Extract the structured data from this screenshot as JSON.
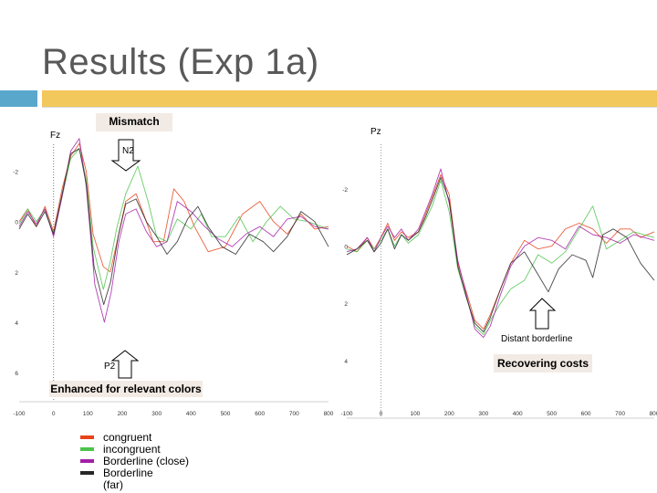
{
  "slide": {
    "title": "Results (Exp 1a)"
  },
  "annotations": {
    "mismatch": "Mismatch",
    "n2": "N2",
    "p2": "P2",
    "enhanced": "Enhanced for relevant colors",
    "distant": "Distant borderline",
    "recovering": "Recovering costs"
  },
  "legend": [
    {
      "label": "congruent",
      "color": "#e8431b"
    },
    {
      "label": "incongruent",
      "color": "#4cc44c"
    },
    {
      "label": "Borderline (close)",
      "color": "#a41ea8"
    },
    {
      "label": "Borderline",
      "color": "#262626"
    },
    {
      "label": "(far)",
      "color": ""
    }
  ],
  "chart_data": [
    {
      "type": "line",
      "panel_label": "Fz",
      "x_ticks": [
        -100,
        0,
        100,
        200,
        300,
        400,
        500,
        600,
        700,
        800
      ],
      "y_ticks": [
        -2,
        0,
        2,
        4,
        6
      ],
      "xlim": [
        -100,
        800
      ],
      "ylim": [
        -3,
        6.8
      ],
      "y_inverted": true,
      "series": [
        {
          "color": "#e8431b",
          "points": [
            [
              -100,
              0
            ],
            [
              -75,
              -0.5
            ],
            [
              -50,
              0.2
            ],
            [
              -25,
              -0.6
            ],
            [
              0,
              0.4
            ],
            [
              25,
              -1.3
            ],
            [
              50,
              -2.6
            ],
            [
              75,
              -3.1
            ],
            [
              95,
              -2
            ],
            [
              115,
              0.5
            ],
            [
              145,
              1.8
            ],
            [
              165,
              2
            ],
            [
              185,
              0.8
            ],
            [
              210,
              -0.8
            ],
            [
              240,
              -1.1
            ],
            [
              270,
              0
            ],
            [
              290,
              0.8
            ],
            [
              320,
              0.8
            ],
            [
              350,
              -1.3
            ],
            [
              380,
              -0.8
            ],
            [
              410,
              0.2
            ],
            [
              450,
              1.2
            ],
            [
              500,
              1
            ],
            [
              550,
              -0.3
            ],
            [
              600,
              -0.8
            ],
            [
              640,
              0
            ],
            [
              680,
              0.5
            ],
            [
              720,
              -0.3
            ],
            [
              760,
              0.3
            ],
            [
              800,
              0.2
            ]
          ]
        },
        {
          "color": "#4cc44c",
          "points": [
            [
              -100,
              0.1
            ],
            [
              -75,
              -0.5
            ],
            [
              -50,
              0
            ],
            [
              -25,
              -0.5
            ],
            [
              0,
              0.5
            ],
            [
              25,
              -1
            ],
            [
              50,
              -2.5
            ],
            [
              75,
              -2.9
            ],
            [
              95,
              -1.7
            ],
            [
              115,
              1
            ],
            [
              145,
              2.7
            ],
            [
              165,
              1.6
            ],
            [
              185,
              0.2
            ],
            [
              210,
              -1.1
            ],
            [
              245,
              -2.2
            ],
            [
              275,
              -0.8
            ],
            [
              300,
              0.6
            ],
            [
              330,
              0.8
            ],
            [
              360,
              -0.1
            ],
            [
              400,
              0.3
            ],
            [
              430,
              -0.3
            ],
            [
              460,
              0.6
            ],
            [
              500,
              0.6
            ],
            [
              540,
              -0.2
            ],
            [
              580,
              0.8
            ],
            [
              620,
              0
            ],
            [
              660,
              -0.6
            ],
            [
              700,
              -0.1
            ],
            [
              740,
              0
            ],
            [
              800,
              0.3
            ]
          ]
        },
        {
          "color": "#a41ea8",
          "points": [
            [
              -100,
              0.2
            ],
            [
              -75,
              -0.4
            ],
            [
              -50,
              0.1
            ],
            [
              -25,
              -0.5
            ],
            [
              0,
              0.6
            ],
            [
              25,
              -1
            ],
            [
              50,
              -2.8
            ],
            [
              75,
              -3.3
            ],
            [
              95,
              -1.4
            ],
            [
              120,
              2.5
            ],
            [
              148,
              4
            ],
            [
              168,
              2.8
            ],
            [
              190,
              0.8
            ],
            [
              210,
              -0.3
            ],
            [
              240,
              -0.5
            ],
            [
              270,
              0.4
            ],
            [
              300,
              1
            ],
            [
              330,
              0.8
            ],
            [
              360,
              -0.8
            ],
            [
              400,
              -0.4
            ],
            [
              440,
              0.2
            ],
            [
              480,
              0.7
            ],
            [
              520,
              1
            ],
            [
              560,
              0.5
            ],
            [
              600,
              0.2
            ],
            [
              640,
              0.6
            ],
            [
              680,
              -0.1
            ],
            [
              720,
              -0.2
            ],
            [
              760,
              0.2
            ],
            [
              800,
              0.3
            ]
          ]
        },
        {
          "color": "#262626",
          "points": [
            [
              -100,
              0.3
            ],
            [
              -75,
              -0.3
            ],
            [
              -50,
              0.2
            ],
            [
              -25,
              -0.4
            ],
            [
              0,
              0.5
            ],
            [
              25,
              -1.1
            ],
            [
              50,
              -2.7
            ],
            [
              75,
              -2.9
            ],
            [
              95,
              -1.5
            ],
            [
              118,
              1.8
            ],
            [
              146,
              3.3
            ],
            [
              166,
              2.4
            ],
            [
              188,
              0.6
            ],
            [
              210,
              -0.7
            ],
            [
              240,
              -0.9
            ],
            [
              270,
              0
            ],
            [
              300,
              0.6
            ],
            [
              330,
              1.3
            ],
            [
              360,
              0.8
            ],
            [
              390,
              -0.1
            ],
            [
              420,
              -0.6
            ],
            [
              450,
              0.2
            ],
            [
              490,
              1
            ],
            [
              530,
              1.3
            ],
            [
              570,
              0.5
            ],
            [
              610,
              0.8
            ],
            [
              640,
              1.2
            ],
            [
              680,
              0.6
            ],
            [
              720,
              -0.4
            ],
            [
              760,
              0
            ],
            [
              800,
              1
            ]
          ]
        }
      ]
    },
    {
      "type": "line",
      "panel_label": "Pz",
      "x_ticks": [
        -100,
        0,
        100,
        200,
        300,
        400,
        500,
        600,
        700,
        800
      ],
      "y_ticks": [
        -2,
        0,
        2,
        4
      ],
      "xlim": [
        -100,
        800
      ],
      "ylim": [
        -3.5,
        5.7
      ],
      "y_inverted": true,
      "series": [
        {
          "color": "#e8431b",
          "points": [
            [
              -100,
              0
            ],
            [
              -70,
              0.2
            ],
            [
              -40,
              -0.3
            ],
            [
              -20,
              0.1
            ],
            [
              0,
              -0.3
            ],
            [
              20,
              -0.8
            ],
            [
              40,
              -0.2
            ],
            [
              60,
              -0.5
            ],
            [
              80,
              -0.3
            ],
            [
              110,
              -0.5
            ],
            [
              130,
              -1.1
            ],
            [
              150,
              -1.7
            ],
            [
              175,
              -2.5
            ],
            [
              200,
              -1.8
            ],
            [
              225,
              0.6
            ],
            [
              250,
              1.6
            ],
            [
              275,
              2.6
            ],
            [
              300,
              2.9
            ],
            [
              320,
              2.4
            ],
            [
              350,
              1.5
            ],
            [
              380,
              0.6
            ],
            [
              420,
              -0.2
            ],
            [
              460,
              0.1
            ],
            [
              500,
              0
            ],
            [
              540,
              -0.6
            ],
            [
              580,
              -0.8
            ],
            [
              620,
              -0.6
            ],
            [
              660,
              -0.1
            ],
            [
              700,
              -0.6
            ],
            [
              730,
              -0.6
            ],
            [
              760,
              -0.3
            ],
            [
              800,
              -0.5
            ]
          ]
        },
        {
          "color": "#4cc44c",
          "points": [
            [
              -100,
              0.1
            ],
            [
              -70,
              0.2
            ],
            [
              -40,
              -0.2
            ],
            [
              -20,
              0.1
            ],
            [
              0,
              -0.2
            ],
            [
              20,
              -0.6
            ],
            [
              40,
              0
            ],
            [
              60,
              -0.4
            ],
            [
              80,
              -0.1
            ],
            [
              110,
              -0.4
            ],
            [
              130,
              -0.9
            ],
            [
              150,
              -1.4
            ],
            [
              175,
              -2.3
            ],
            [
              200,
              -1.2
            ],
            [
              225,
              0.8
            ],
            [
              250,
              1.8
            ],
            [
              275,
              2.8
            ],
            [
              300,
              3.1
            ],
            [
              320,
              2.6
            ],
            [
              350,
              2
            ],
            [
              380,
              1.5
            ],
            [
              420,
              1.2
            ],
            [
              460,
              0.3
            ],
            [
              500,
              0.6
            ],
            [
              540,
              0.2
            ],
            [
              580,
              -0.6
            ],
            [
              620,
              -1.4
            ],
            [
              660,
              0.1
            ],
            [
              700,
              -0.2
            ],
            [
              740,
              -0.5
            ],
            [
              800,
              -0.3
            ]
          ]
        },
        {
          "color": "#a41ea8",
          "points": [
            [
              -100,
              0.2
            ],
            [
              -70,
              0.1
            ],
            [
              -40,
              -0.3
            ],
            [
              -20,
              0.2
            ],
            [
              0,
              -0.3
            ],
            [
              20,
              -0.7
            ],
            [
              40,
              -0.3
            ],
            [
              60,
              -0.6
            ],
            [
              80,
              -0.2
            ],
            [
              110,
              -0.6
            ],
            [
              130,
              -1.2
            ],
            [
              150,
              -1.8
            ],
            [
              175,
              -2.7
            ],
            [
              200,
              -1.5
            ],
            [
              225,
              0.5
            ],
            [
              250,
              1.7
            ],
            [
              275,
              2.9
            ],
            [
              300,
              3.2
            ],
            [
              320,
              2.8
            ],
            [
              350,
              1.7
            ],
            [
              380,
              0.7
            ],
            [
              420,
              0
            ],
            [
              460,
              -0.3
            ],
            [
              500,
              -0.2
            ],
            [
              540,
              0.1
            ],
            [
              580,
              -0.7
            ],
            [
              620,
              -0.4
            ],
            [
              660,
              -0.3
            ],
            [
              700,
              -0.1
            ],
            [
              740,
              -0.4
            ],
            [
              800,
              -0.2
            ]
          ]
        },
        {
          "color": "#262626",
          "points": [
            [
              -100,
              0.3
            ],
            [
              -70,
              0.1
            ],
            [
              -40,
              -0.2
            ],
            [
              -20,
              0.2
            ],
            [
              0,
              -0.1
            ],
            [
              20,
              -0.6
            ],
            [
              40,
              0.1
            ],
            [
              60,
              -0.4
            ],
            [
              80,
              -0.2
            ],
            [
              110,
              -0.5
            ],
            [
              130,
              -1
            ],
            [
              150,
              -1.6
            ],
            [
              175,
              -2.4
            ],
            [
              200,
              -1.6
            ],
            [
              225,
              0.7
            ],
            [
              250,
              1.8
            ],
            [
              275,
              2.7
            ],
            [
              300,
              3
            ],
            [
              320,
              2.5
            ],
            [
              350,
              1.5
            ],
            [
              380,
              0.6
            ],
            [
              420,
              0.2
            ],
            [
              460,
              1
            ],
            [
              490,
              1.6
            ],
            [
              520,
              0.8
            ],
            [
              560,
              0.3
            ],
            [
              600,
              0.5
            ],
            [
              620,
              1.1
            ],
            [
              650,
              -0.4
            ],
            [
              680,
              -0.6
            ],
            [
              720,
              -0.3
            ],
            [
              760,
              0.6
            ],
            [
              800,
              1.2
            ]
          ]
        }
      ]
    }
  ]
}
